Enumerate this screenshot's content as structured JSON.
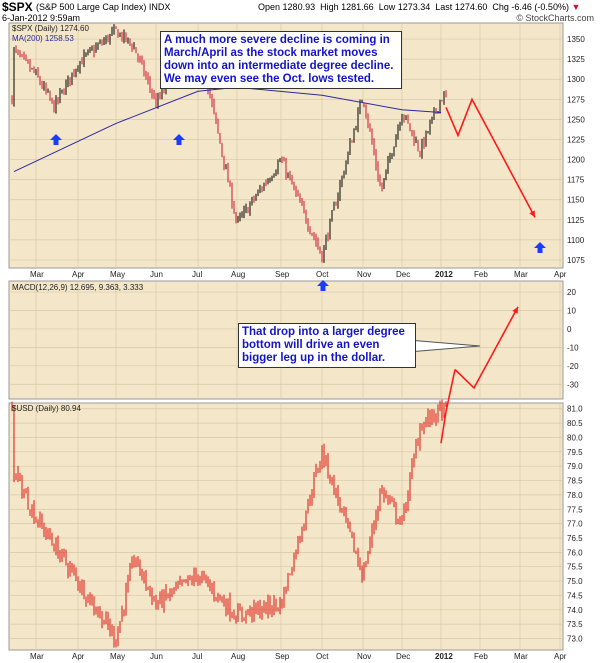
{
  "header": {
    "symbol": "$SPX",
    "name": "(S&P 500 Large Cap Index) INDX",
    "date": "6-Jan-2012 9:59am",
    "quote": {
      "open_label": "Open",
      "open": "1280.93",
      "high_label": "High",
      "high": "1281.66",
      "low_label": "Low",
      "low": "1273.34",
      "last_label": "Last",
      "last": "1274.60",
      "chg_label": "Chg",
      "chg": "-6.46 (-0.50%)"
    },
    "source": "© StockCharts.com"
  },
  "colors": {
    "panel_bg": "#f4e7c9",
    "spx_up": "#000000",
    "spx_down": "#d0102a",
    "ma200": "#2a2aa0",
    "usd": "#e01010",
    "forecast": "#ff1a1a",
    "arrow_blue": "#1a3cff",
    "note_text": "#1414c8"
  },
  "annotations": {
    "top_note": "A much more severe decline is coming in March/April as the stock market moves down into an intermediate degree decline. We may even see the Oct. lows tested.",
    "mid_note": "That drop into a larger degree bottom will drive an even bigger leg up in the dollar."
  },
  "chart_data": [
    {
      "type": "candlestick",
      "title": "$SPX (Daily) 1274.60",
      "overlay": "MA(200) 1258.53",
      "x_ticks": [
        "Mar",
        "Apr",
        "May",
        "Jun",
        "Jul",
        "Aug",
        "Sep",
        "Oct",
        "Nov",
        "Dec",
        "2012",
        "Feb",
        "Mar",
        "Apr"
      ],
      "y_ticks": [
        1075,
        1100,
        1125,
        1150,
        1175,
        1200,
        1225,
        1250,
        1275,
        1300,
        1325,
        1350
      ],
      "ylim": [
        1065,
        1370
      ],
      "monthly_path": [
        {
          "x": "Feb",
          "y": 1335
        },
        {
          "x": "Mar",
          "y": 1305
        },
        {
          "x": "Mar",
          "y": 1265
        },
        {
          "x": "Apr",
          "y": 1320
        },
        {
          "x": "May",
          "y": 1360
        },
        {
          "x": "May",
          "y": 1340
        },
        {
          "x": "Jun",
          "y": 1270
        },
        {
          "x": "Jul",
          "y": 1350
        },
        {
          "x": "Aug",
          "y": 1120
        },
        {
          "x": "Sep",
          "y": 1200
        },
        {
          "x": "Oct",
          "y": 1080
        },
        {
          "x": "Nov",
          "y": 1280
        },
        {
          "x": "Nov",
          "y": 1160
        },
        {
          "x": "Dec",
          "y": 1260
        },
        {
          "x": "Dec",
          "y": 1210
        },
        {
          "x": "2012",
          "y": 1277
        }
      ],
      "ma200_path": [
        {
          "x": "Feb",
          "y": 1185
        },
        {
          "x": "May",
          "y": 1245
        },
        {
          "x": "Jul",
          "y": 1285
        },
        {
          "x": "Aug",
          "y": 1290
        },
        {
          "x": "Oct",
          "y": 1280
        },
        {
          "x": "Dec",
          "y": 1262
        },
        {
          "x": "2012",
          "y": 1258.53
        }
      ],
      "forecast_path": [
        {
          "x": "2012",
          "y": 1265
        },
        {
          "x": "Jan",
          "y": 1230
        },
        {
          "x": "Feb",
          "y": 1275
        },
        {
          "x": "Mar",
          "y": 1130
        }
      ],
      "markers": [
        {
          "x": "Mar",
          "y": 1245
        },
        {
          "x": "Jun",
          "y": 1245
        },
        {
          "x": "Oct",
          "y": 1065
        },
        {
          "x": "Apr",
          "y": 1102
        }
      ]
    },
    {
      "type": "line",
      "title": "MACD(12,26,9) 12.695, 9.363, 3.333",
      "y_ticks": [
        20,
        10,
        0,
        -10,
        -20,
        -30
      ],
      "ylim": [
        -38,
        26
      ],
      "forecast_path": [
        {
          "x": "Jan",
          "y": -22
        },
        {
          "x": "Feb",
          "y": -32
        },
        {
          "x": "Mar",
          "y": 12
        }
      ]
    },
    {
      "type": "candlestick",
      "title": "$USD (Daily) 80.94",
      "x_ticks": [
        "Mar",
        "Apr",
        "May",
        "Jun",
        "Jul",
        "Aug",
        "Sep",
        "Oct",
        "Nov",
        "Dec",
        "2012",
        "Feb",
        "Mar",
        "Apr"
      ],
      "y_ticks": [
        73.0,
        73.5,
        74.0,
        74.5,
        75.0,
        75.5,
        76.0,
        76.5,
        77.0,
        77.5,
        78.0,
        78.5,
        79.0,
        79.5,
        80.0,
        80.5,
        81.0
      ],
      "ylim": [
        72.6,
        81.2
      ],
      "monthly_path": [
        {
          "x": "Feb",
          "y": 78.8
        },
        {
          "x": "Mar",
          "y": 77.2
        },
        {
          "x": "Apr",
          "y": 75.0
        },
        {
          "x": "May",
          "y": 73.0
        },
        {
          "x": "May",
          "y": 75.8
        },
        {
          "x": "Jun",
          "y": 74.2
        },
        {
          "x": "Jul",
          "y": 75.2
        },
        {
          "x": "Aug",
          "y": 73.8
        },
        {
          "x": "Sep",
          "y": 74.2
        },
        {
          "x": "Oct",
          "y": 79.5
        },
        {
          "x": "Nov",
          "y": 75.2
        },
        {
          "x": "Nov",
          "y": 78.2
        },
        {
          "x": "Dec",
          "y": 77.0
        },
        {
          "x": "Dec",
          "y": 80.4
        },
        {
          "x": "2012",
          "y": 80.94
        }
      ],
      "forecast_path": [
        {
          "x": "2012",
          "y": 79.8
        },
        {
          "x": "2012",
          "y": 80.9
        }
      ]
    }
  ]
}
